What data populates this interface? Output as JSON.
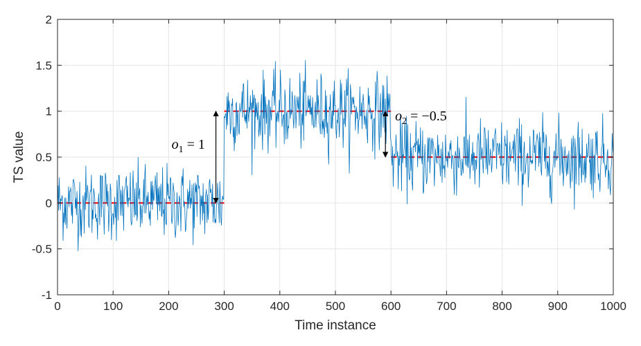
{
  "chart_data": {
    "type": "line",
    "xlabel": "Time instance",
    "ylabel": "TS value",
    "xlim": [
      0,
      1000
    ],
    "ylim": [
      -1,
      2
    ],
    "xticks": [
      0,
      100,
      200,
      300,
      400,
      500,
      600,
      700,
      800,
      900,
      1000
    ],
    "yticks": [
      -1,
      -0.5,
      0,
      0.5,
      1,
      1.5,
      2
    ],
    "xtick_labels": [
      "0",
      "100",
      "200",
      "300",
      "400",
      "500",
      "600",
      "700",
      "800",
      "900",
      "1000"
    ],
    "ytick_labels": [
      "-1",
      "-0.5",
      "0",
      "0.5",
      "1",
      "1.5",
      "2"
    ],
    "grid": true,
    "series": [
      {
        "color": "#0072BD",
        "x_start": 0,
        "x_end": 1000,
        "x_step": 1,
        "segments": [
          {
            "x": [
              0,
              300
            ],
            "mean": 0,
            "std": 0.2
          },
          {
            "x": [
              300,
              600
            ],
            "mean": 1,
            "std": 0.2
          },
          {
            "x": [
              600,
              1000
            ],
            "mean": 0.5,
            "std": 0.2
          }
        ],
        "observed_range": [
          -0.55,
          1.62
        ]
      }
    ],
    "reference_levels": [
      {
        "x": [
          0,
          300
        ],
        "y": 0,
        "color": "#FF0000",
        "style": "dashed"
      },
      {
        "x": [
          300,
          600
        ],
        "y": 1,
        "color": "#FF0000",
        "style": "dashed"
      },
      {
        "x": [
          600,
          1000
        ],
        "y": 0.5,
        "color": "#FF0000",
        "style": "dashed"
      }
    ],
    "annotations": [
      {
        "text_var": "o",
        "text_sub": "1",
        "text_rest": " = 1",
        "arrow_x": 285,
        "arrow_from": 0,
        "arrow_to": 1
      },
      {
        "text_var": "o",
        "text_sub": "2",
        "text_rest": " = −0.5",
        "arrow_x": 590,
        "arrow_from": 1,
        "arrow_to": 0.5
      }
    ],
    "colors": {
      "series": "#0072BD",
      "reference": "#FF0000",
      "grid": "#E6E6E6",
      "axis": "#262626",
      "arrow": "#000000"
    }
  }
}
